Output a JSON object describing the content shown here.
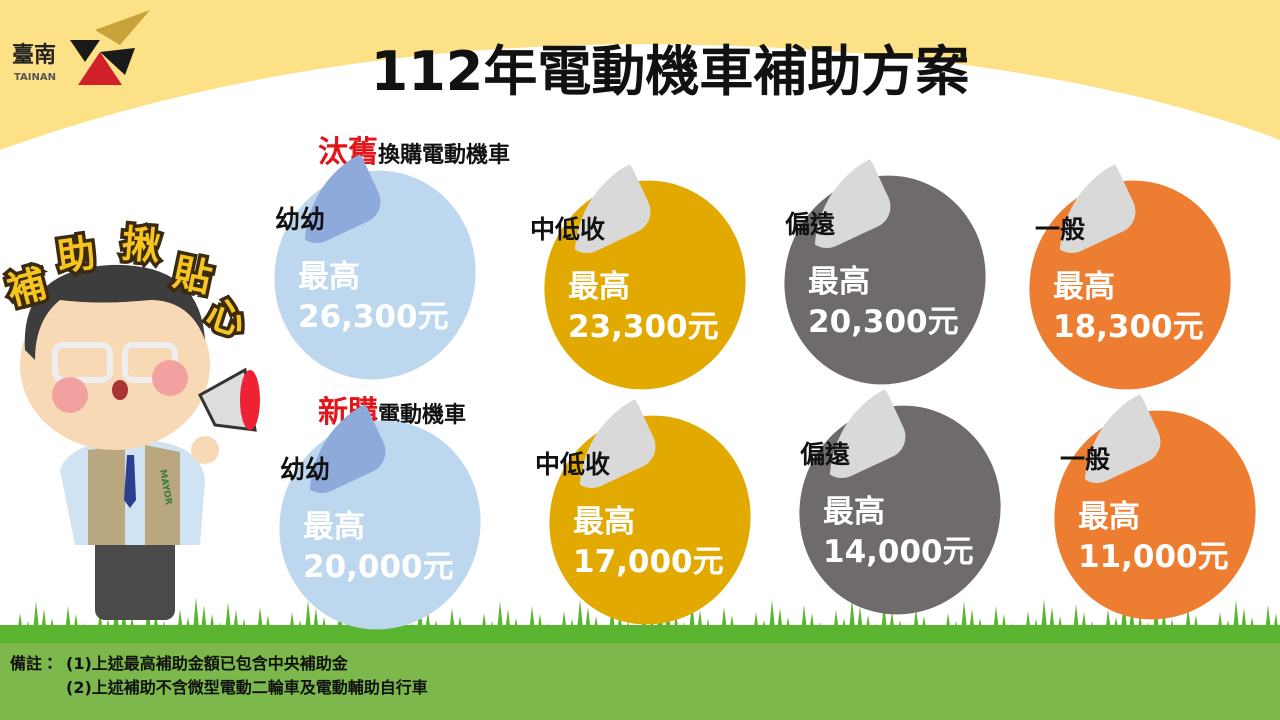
{
  "logo": {
    "name": "臺南",
    "romanized": "TAINAN"
  },
  "title": "112年電動機車補助方案",
  "mascot": {
    "slogan": [
      "補",
      "助",
      "揪",
      "貼",
      "心"
    ],
    "vest": "MAYOR"
  },
  "sections": [
    {
      "highlight": "汰舊",
      "heading": "換購電動機車",
      "cards": [
        {
          "label": "幼幼",
          "prefix": "最高",
          "amount": "26,300元"
        },
        {
          "label": "中低收",
          "prefix": "最高",
          "amount": "23,300元"
        },
        {
          "label": "偏遠",
          "prefix": "最高",
          "amount": "20,300元"
        },
        {
          "label": "一般",
          "prefix": "最高",
          "amount": "18,300元"
        }
      ]
    },
    {
      "highlight": "新購",
      "heading": "電動機車",
      "cards": [
        {
          "label": "幼幼",
          "prefix": "最高",
          "amount": "20,000元"
        },
        {
          "label": "中低收",
          "prefix": "最高",
          "amount": "17,000元"
        },
        {
          "label": "偏遠",
          "prefix": "最高",
          "amount": "14,000元"
        },
        {
          "label": "一般",
          "prefix": "最高",
          "amount": "11,000元"
        }
      ]
    }
  ],
  "footer": {
    "label": "備註：",
    "notes": [
      "(1)上述最高補助金額已包含中央補助金",
      "(2)上述補助不含微型電動二輪車及電動輔助自行車"
    ]
  }
}
